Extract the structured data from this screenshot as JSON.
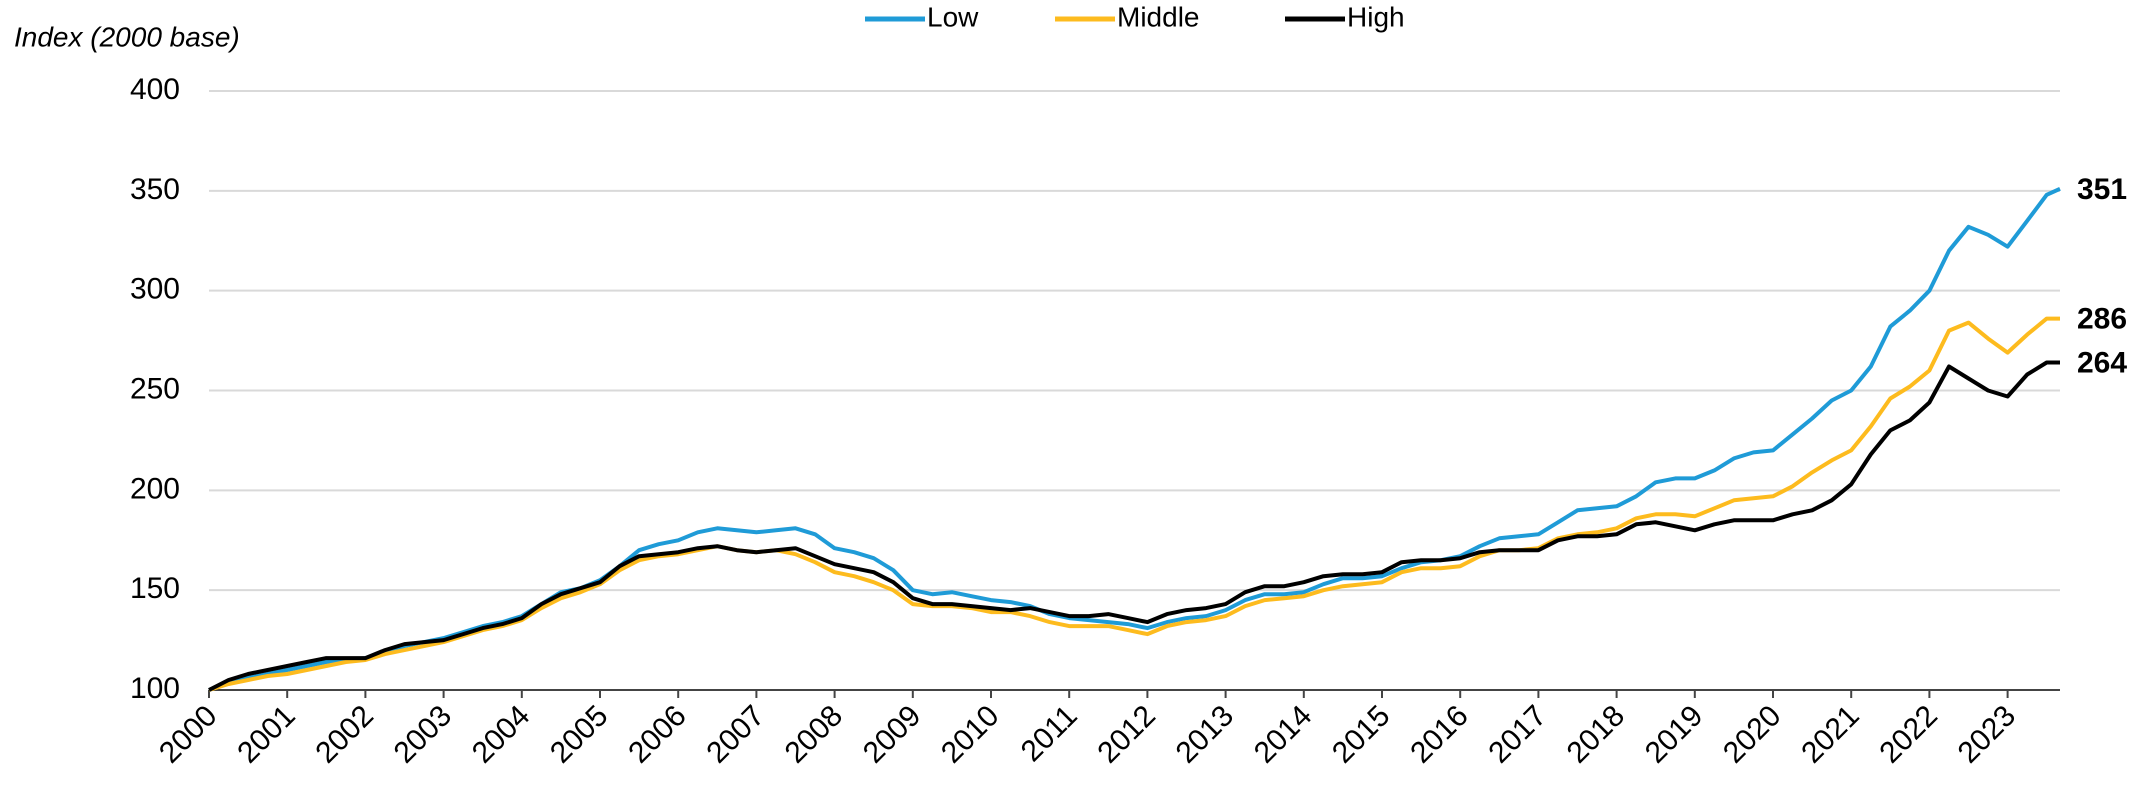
{
  "chart_data": {
    "type": "line",
    "y_label": "Index (2000 base)",
    "x": [
      2000,
      2000.25,
      2000.5,
      2000.75,
      2001,
      2001.25,
      2001.5,
      2001.75,
      2002,
      2002.25,
      2002.5,
      2002.75,
      2003,
      2003.25,
      2003.5,
      2003.75,
      2004,
      2004.25,
      2004.5,
      2004.75,
      2005,
      2005.25,
      2005.5,
      2005.75,
      2006,
      2006.25,
      2006.5,
      2006.75,
      2007,
      2007.25,
      2007.5,
      2007.75,
      2008,
      2008.25,
      2008.5,
      2008.75,
      2009,
      2009.25,
      2009.5,
      2009.75,
      2010,
      2010.25,
      2010.5,
      2010.75,
      2011,
      2011.25,
      2011.5,
      2011.75,
      2012,
      2012.25,
      2012.5,
      2012.75,
      2013,
      2013.25,
      2013.5,
      2013.75,
      2014,
      2014.25,
      2014.5,
      2014.75,
      2015,
      2015.25,
      2015.5,
      2015.75,
      2016,
      2016.25,
      2016.5,
      2016.75,
      2017,
      2017.25,
      2017.5,
      2017.75,
      2018,
      2018.25,
      2018.5,
      2018.75,
      2019,
      2019.25,
      2019.5,
      2019.75,
      2020,
      2020.25,
      2020.5,
      2020.75,
      2021,
      2021.25,
      2021.5,
      2021.75,
      2022,
      2022.25,
      2022.5,
      2022.75,
      2023,
      2023.25,
      2023.5,
      2023.67
    ],
    "series": [
      {
        "name": "Low",
        "color": "#1f9bd7",
        "values": [
          100,
          104,
          106,
          108,
          110,
          112,
          114,
          115,
          116,
          119,
          122,
          124,
          126,
          129,
          132,
          134,
          137,
          143,
          149,
          151,
          155,
          162,
          170,
          173,
          175,
          179,
          181,
          180,
          179,
          180,
          181,
          178,
          171,
          169,
          166,
          160,
          150,
          148,
          149,
          147,
          145,
          144,
          142,
          138,
          136,
          135,
          134,
          133,
          131,
          134,
          136,
          137,
          140,
          145,
          148,
          148,
          149,
          153,
          156,
          156,
          157,
          161,
          164,
          165,
          167,
          172,
          176,
          177,
          178,
          184,
          190,
          191,
          192,
          197,
          204,
          206,
          206,
          210,
          216,
          219,
          220,
          228,
          236,
          245,
          250,
          262,
          282,
          290,
          300,
          320,
          332,
          328,
          322,
          335,
          348,
          351
        ]
      },
      {
        "name": "Middle",
        "color": "#fdbb1e",
        "values": [
          100,
          103,
          105,
          107,
          108,
          110,
          112,
          114,
          115,
          118,
          120,
          122,
          124,
          127,
          130,
          132,
          135,
          141,
          146,
          149,
          153,
          160,
          165,
          167,
          168,
          170,
          172,
          170,
          169,
          170,
          168,
          164,
          159,
          157,
          154,
          150,
          143,
          142,
          142,
          141,
          139,
          139,
          137,
          134,
          132,
          132,
          132,
          130,
          128,
          132,
          134,
          135,
          137,
          142,
          145,
          146,
          147,
          150,
          152,
          153,
          154,
          159,
          161,
          161,
          162,
          167,
          170,
          170,
          171,
          176,
          178,
          179,
          181,
          186,
          188,
          188,
          187,
          191,
          195,
          196,
          197,
          202,
          209,
          215,
          220,
          232,
          246,
          252,
          260,
          280,
          284,
          276,
          269,
          278,
          286,
          286
        ]
      },
      {
        "name": "High",
        "color": "#000000",
        "values": [
          100,
          105,
          108,
          110,
          112,
          114,
          116,
          116,
          116,
          120,
          123,
          124,
          125,
          128,
          131,
          133,
          136,
          143,
          148,
          151,
          154,
          162,
          167,
          168,
          169,
          171,
          172,
          170,
          169,
          170,
          171,
          167,
          163,
          161,
          159,
          154,
          146,
          143,
          143,
          142,
          141,
          140,
          141,
          139,
          137,
          137,
          138,
          136,
          134,
          138,
          140,
          141,
          143,
          149,
          152,
          152,
          154,
          157,
          158,
          158,
          159,
          164,
          165,
          165,
          166,
          169,
          170,
          170,
          170,
          175,
          177,
          177,
          178,
          183,
          184,
          182,
          180,
          183,
          185,
          185,
          185,
          188,
          190,
          195,
          203,
          218,
          230,
          235,
          244,
          262,
          256,
          250,
          247,
          258,
          264,
          264
        ]
      }
    ],
    "xlim": [
      2000,
      2023.67
    ],
    "xticks": [
      2000,
      2001,
      2002,
      2003,
      2004,
      2005,
      2006,
      2007,
      2008,
      2009,
      2010,
      2011,
      2012,
      2013,
      2014,
      2015,
      2016,
      2017,
      2018,
      2019,
      2020,
      2021,
      2022,
      2023
    ],
    "ylim": [
      100,
      400
    ],
    "yticks": [
      100,
      150,
      200,
      250,
      300,
      350,
      400
    ],
    "grid": true,
    "legend": "top"
  }
}
